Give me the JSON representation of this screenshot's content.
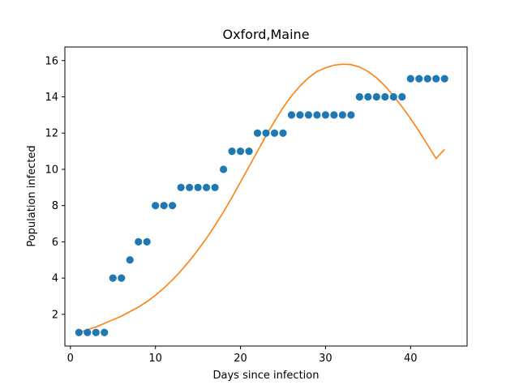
{
  "chart_data": {
    "type": "scatter",
    "title": "Oxford,Maine",
    "xlabel": "Days since infection",
    "ylabel": "Population infected",
    "xlim": [
      -0.65,
      46.65
    ],
    "ylim": [
      0.25,
      16.75
    ],
    "xticks": [
      0,
      10,
      20,
      30,
      40
    ],
    "yticks": [
      2,
      4,
      6,
      8,
      10,
      12,
      14,
      16
    ],
    "grid": false,
    "colors": {
      "points": "#1f77b4",
      "fit": "#ff7f0e"
    },
    "series": [
      {
        "type": "scatter",
        "x": [
          1,
          2,
          3,
          4,
          5,
          6,
          7,
          8,
          9,
          10,
          11,
          12,
          13,
          14,
          15,
          16,
          17,
          18,
          19,
          20,
          21,
          22,
          23,
          24,
          25,
          26,
          27,
          28,
          29,
          30,
          31,
          32,
          33,
          34,
          35,
          36,
          37,
          38,
          39,
          40,
          41,
          42,
          43,
          44
        ],
        "y": [
          1,
          1,
          1,
          1,
          4,
          4,
          5,
          6,
          6,
          8,
          8,
          8,
          9,
          9,
          9,
          9,
          9,
          10,
          11,
          11,
          11,
          12,
          12,
          12,
          12,
          13,
          13,
          13,
          13,
          13,
          13,
          13,
          13,
          14,
          14,
          14,
          14,
          14,
          14,
          15,
          15,
          15,
          15,
          15
        ]
      },
      {
        "type": "line",
        "x": [
          1,
          2,
          3,
          4,
          5,
          6,
          7,
          8,
          9,
          10,
          11,
          12,
          13,
          14,
          15,
          16,
          17,
          18,
          19,
          20,
          21,
          22,
          23,
          24,
          25,
          26,
          27,
          28,
          29,
          30,
          31,
          32,
          33,
          34,
          35,
          36,
          37,
          38,
          39,
          40,
          41,
          42,
          43,
          44
        ],
        "y": [
          1.0,
          1.15,
          1.3,
          1.5,
          1.7,
          1.9,
          2.15,
          2.4,
          2.7,
          3.05,
          3.45,
          3.9,
          4.4,
          4.95,
          5.55,
          6.2,
          6.9,
          7.65,
          8.45,
          9.3,
          10.15,
          11.0,
          11.85,
          12.65,
          13.4,
          14.05,
          14.6,
          15.05,
          15.4,
          15.6,
          15.75,
          15.8,
          15.78,
          15.65,
          15.4,
          15.05,
          14.6,
          14.05,
          13.45,
          12.8,
          12.1,
          11.35,
          10.6,
          11.1
        ]
      }
    ]
  }
}
